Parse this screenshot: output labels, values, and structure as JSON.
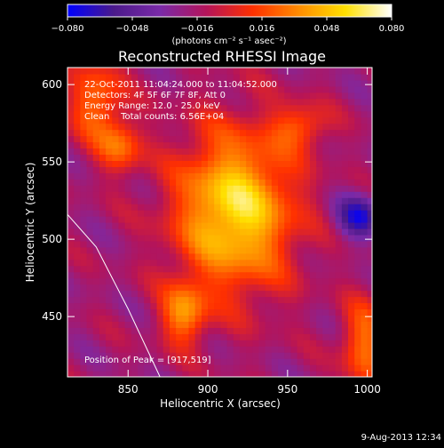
{
  "chart_data": {
    "type": "heatmap",
    "title": "Reconstructed RHESSI Image",
    "xlabel": "Heliocentric X (arcsec)",
    "ylabel": "Heliocentric Y (arcsec)",
    "xlim": [
      812,
      1003
    ],
    "ylim": [
      411,
      611
    ],
    "xticks": [
      850,
      900,
      950,
      1000
    ],
    "yticks": [
      450,
      500,
      550,
      600
    ],
    "colorbar": {
      "range": [
        -0.08,
        0.08
      ],
      "ticks": [
        -0.08,
        -0.048,
        -0.016,
        0.016,
        0.048,
        0.08
      ],
      "tick_labels": [
        "−0.080",
        "−0.048",
        "−0.016",
        "0.016",
        "0.048",
        "0.080"
      ],
      "unit_label": "(photons cm⁻² s⁻¹ asec⁻²)",
      "colormap": [
        "#0000ff",
        "#4b1a8a",
        "#7a2aa8",
        "#b4145a",
        "#ff3000",
        "#ff8c00",
        "#ffe000",
        "#ffffff"
      ]
    },
    "annotations": [
      "22-Oct-2011 11:04:24.000 to 11:04:52.000",
      "Detectors: 4F 5F 6F 7F 8F, Att 0",
      "Energy Range: 12.0 - 25.0 keV",
      "Clean    Total counts: 6.56E+04"
    ],
    "peak_label": "Position of Peak = [917,519]",
    "peak": [
      917,
      519
    ],
    "limb_curve": [
      [
        812,
        516
      ],
      [
        830,
        495
      ],
      [
        850,
        455
      ],
      [
        870,
        411
      ]
    ],
    "sources": [
      {
        "x": 917,
        "y": 519,
        "sx": 26,
        "sy": 36,
        "amp": 0.078
      },
      {
        "x": 830,
        "y": 590,
        "sx": 12,
        "sy": 18,
        "amp": 0.045
      },
      {
        "x": 845,
        "y": 560,
        "sx": 10,
        "sy": 12,
        "amp": 0.04
      },
      {
        "x": 885,
        "y": 452,
        "sx": 10,
        "sy": 14,
        "amp": 0.05
      },
      {
        "x": 958,
        "y": 573,
        "sx": 12,
        "sy": 10,
        "amp": 0.035
      },
      {
        "x": 998,
        "y": 432,
        "sx": 10,
        "sy": 20,
        "amp": 0.045
      },
      {
        "x": 995,
        "y": 515,
        "sx": 10,
        "sy": 10,
        "amp": -0.05
      }
    ]
  },
  "footer": {
    "date": "9-Aug-2013 12:34"
  }
}
